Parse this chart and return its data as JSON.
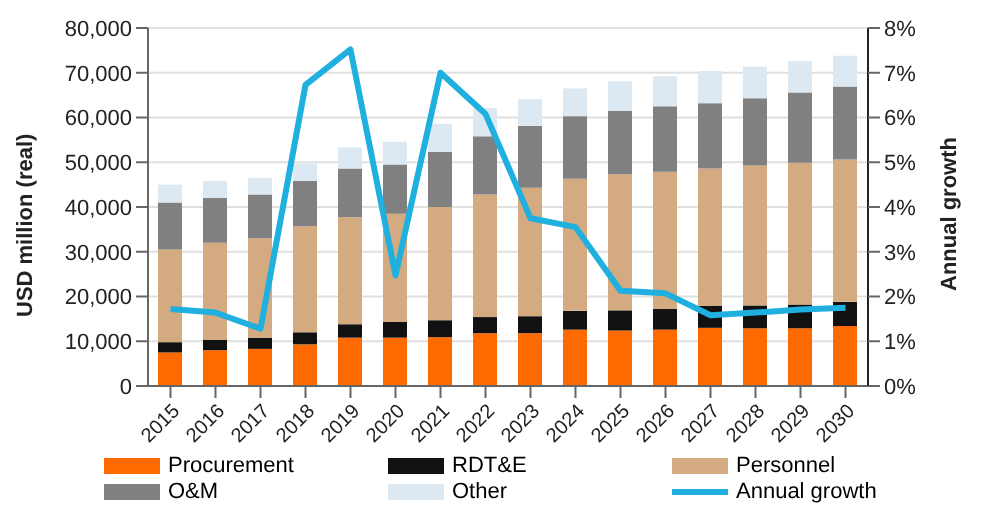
{
  "chart_data": {
    "type": "bar",
    "stacked": true,
    "ylabel": "USD million (real)",
    "y2label": "Annual growth",
    "categories": [
      "2015",
      "2016",
      "2017",
      "2018",
      "2019",
      "2020",
      "2021",
      "2022",
      "2023",
      "2024",
      "2025",
      "2026",
      "2027",
      "2028",
      "2029",
      "2030"
    ],
    "series": [
      {
        "name": "Procurement",
        "color": "#ff6a00",
        "values": [
          7500,
          8000,
          8300,
          9300,
          10800,
          10800,
          10900,
          11800,
          11800,
          12600,
          12400,
          12600,
          13000,
          12900,
          12900,
          13400
        ]
      },
      {
        "name": "RDT&E",
        "color": "#111111",
        "values": [
          2300,
          2300,
          2500,
          2700,
          3000,
          3500,
          3800,
          3600,
          3800,
          4200,
          4500,
          4600,
          4900,
          5100,
          5300,
          5400
        ]
      },
      {
        "name": "Personnel",
        "color": "#d4aa80",
        "values": [
          20700,
          21700,
          22200,
          23700,
          23900,
          24200,
          25300,
          27400,
          28700,
          29500,
          30400,
          30700,
          30700,
          31300,
          31700,
          31800
        ]
      },
      {
        "name": "O&M",
        "color": "#808080",
        "values": [
          10500,
          10000,
          9800,
          10100,
          10900,
          11000,
          12300,
          13000,
          13800,
          14000,
          14200,
          14600,
          14600,
          15000,
          15700,
          16300
        ]
      },
      {
        "name": "Other",
        "color": "#dce9f3",
        "values": [
          4000,
          3800,
          3700,
          3900,
          4700,
          5100,
          6300,
          6300,
          6000,
          6200,
          6600,
          6700,
          7200,
          7100,
          7000,
          6900
        ]
      },
      {
        "name": "Annual growth",
        "type": "line",
        "axis": "y2",
        "color": "#1fb0e0",
        "values": [
          1.72,
          1.64,
          1.28,
          6.73,
          7.52,
          2.47,
          7.0,
          6.08,
          3.75,
          3.55,
          2.13,
          2.07,
          1.58,
          1.64,
          1.71,
          1.75
        ]
      }
    ],
    "ylim": [
      0,
      80000
    ],
    "yticks": [
      {
        "value": 0,
        "label": "0"
      },
      {
        "value": 10000,
        "label": "10,000"
      },
      {
        "value": 20000,
        "label": "20,000"
      },
      {
        "value": 30000,
        "label": "30,000"
      },
      {
        "value": 40000,
        "label": "40,000"
      },
      {
        "value": 50000,
        "label": "50,000"
      },
      {
        "value": 60000,
        "label": "60,000"
      },
      {
        "value": 70000,
        "label": "70,000"
      },
      {
        "value": 80000,
        "label": "80,000"
      }
    ],
    "y2lim": [
      0,
      8
    ],
    "y2ticks": [
      {
        "value": 0,
        "label": "0%"
      },
      {
        "value": 1,
        "label": "1%"
      },
      {
        "value": 2,
        "label": "2%"
      },
      {
        "value": 3,
        "label": "3%"
      },
      {
        "value": 4,
        "label": "4%"
      },
      {
        "value": 5,
        "label": "5%"
      },
      {
        "value": 6,
        "label": "6%"
      },
      {
        "value": 7,
        "label": "7%"
      },
      {
        "value": 8,
        "label": "8%"
      }
    ],
    "grid": "y",
    "legend": "bottom",
    "marker": "none",
    "line_style": "solid"
  }
}
